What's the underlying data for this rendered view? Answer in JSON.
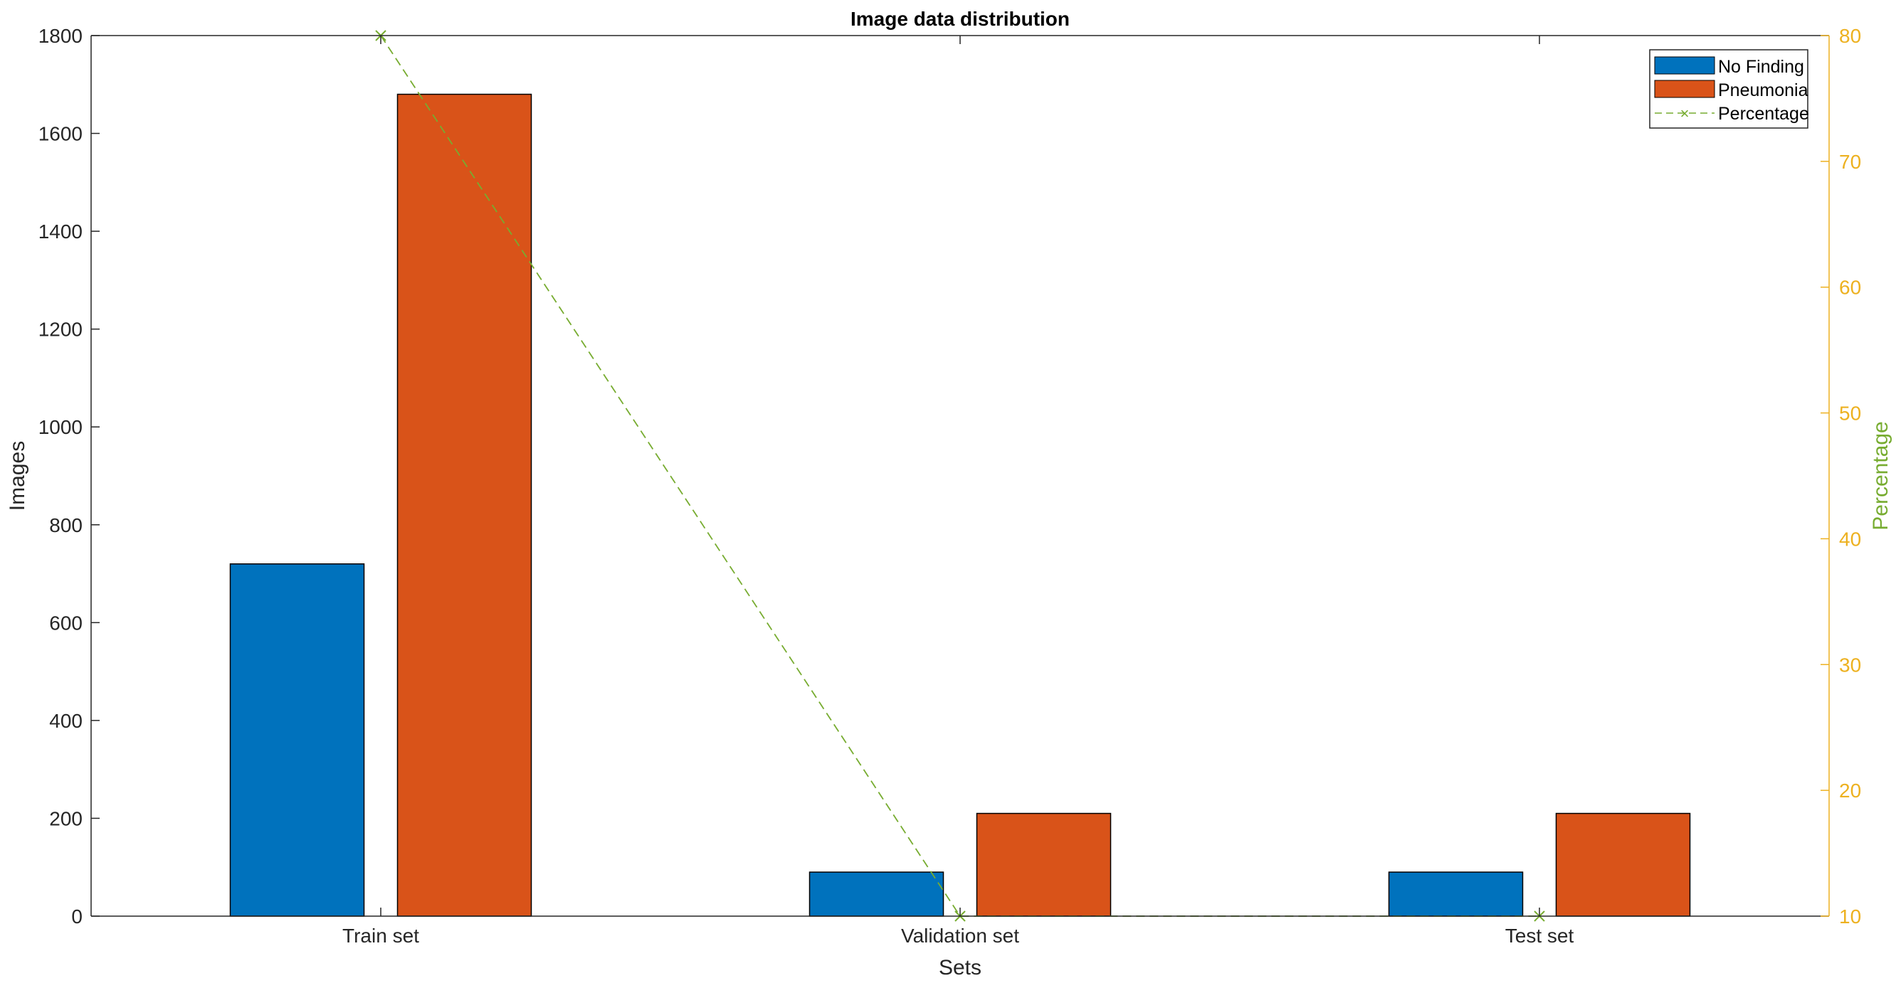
{
  "chart_data": {
    "type": "bar",
    "title": "Image data distribution",
    "xlabel": "Sets",
    "ylabel": "Images",
    "y2label": "Percentage",
    "categories": [
      "Train set",
      "Validation set",
      "Test set"
    ],
    "series": [
      {
        "name": "No Finding",
        "values": [
          720,
          90,
          90
        ],
        "color": "#0072BD"
      },
      {
        "name": "Pneumonia",
        "values": [
          1680,
          210,
          210
        ],
        "color": "#D95319"
      }
    ],
    "line_series": {
      "name": "Percentage",
      "values": [
        80,
        10,
        10
      ],
      "color": "#77AC30",
      "axis": "right",
      "style": "dashed",
      "marker": "x"
    },
    "ylim": [
      0,
      1800
    ],
    "y2lim": [
      10,
      80
    ],
    "yticks": [
      0,
      200,
      400,
      600,
      800,
      1000,
      1200,
      1400,
      1600,
      1800
    ],
    "y2ticks": [
      10,
      20,
      30,
      40,
      50,
      60,
      70,
      80
    ],
    "right_axis_color": "#EDB120",
    "grid": false,
    "legend": "top-right"
  }
}
